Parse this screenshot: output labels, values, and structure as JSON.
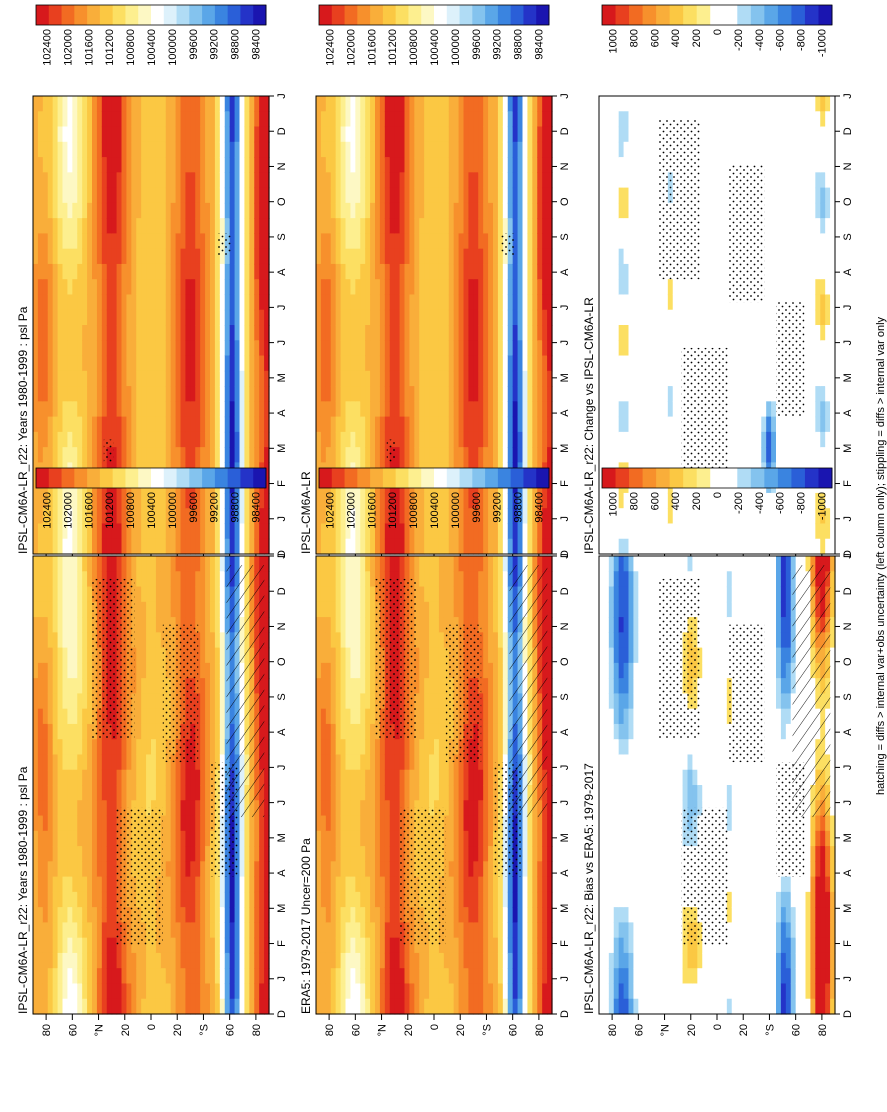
{
  "footer": "hatching = diffs > internal var+obs uncertainty (left column only); stippling = diffs > internal var only",
  "chart_data": [
    {
      "id": "model-left",
      "type": "heatmap",
      "title": "IPSL-CM6A-LR_r22: Years 1980-1999 : psl Pa",
      "variable": "psl",
      "units": "Pa",
      "x_axis": [
        "D",
        "J",
        "F",
        "M",
        "A",
        "M",
        "J",
        "J",
        "A",
        "S",
        "O",
        "N",
        "D",
        "J"
      ],
      "y_axis": [
        "80",
        "60",
        "°N",
        "20",
        "0",
        "20",
        "°S",
        "60",
        "80"
      ],
      "colorbar": [
        "102400",
        "102000",
        "101600",
        "101200",
        "100800",
        "100400",
        "100000",
        "99600",
        "99200",
        "98800",
        "98400"
      ],
      "colorbar_kind": "abs",
      "stippling": true,
      "hatching": true
    },
    {
      "id": "model-right",
      "type": "heatmap",
      "title": "IPSL-CM6A-LR_r22: Years 1980-1999 : psl Pa",
      "x_axis": [
        "D",
        "J",
        "F",
        "M",
        "A",
        "M",
        "J",
        "J",
        "A",
        "S",
        "O",
        "N",
        "D",
        "J"
      ],
      "y_axis": [
        "80",
        "60",
        "°N",
        "20",
        "0",
        "20",
        "°S",
        "60",
        "80"
      ],
      "colorbar": [
        "102400",
        "102000",
        "101600",
        "101200",
        "100800",
        "100400",
        "100000",
        "99600",
        "99200",
        "98800",
        "98400"
      ],
      "colorbar_kind": "abs",
      "stippling": true,
      "hatching": false
    },
    {
      "id": "obs-left",
      "type": "heatmap",
      "title": "ERA5: 1979-2017 Uncer=200 Pa",
      "x_axis": [
        "D",
        "J",
        "F",
        "M",
        "A",
        "M",
        "J",
        "J",
        "A",
        "S",
        "O",
        "N",
        "D",
        "J"
      ],
      "y_axis": [
        "80",
        "60",
        "°N",
        "20",
        "0",
        "20",
        "°S",
        "60",
        "80"
      ],
      "colorbar": [
        "102400",
        "102000",
        "101600",
        "101200",
        "100800",
        "100400",
        "100000",
        "99600",
        "99200",
        "98800",
        "98400"
      ],
      "colorbar_kind": "abs",
      "stippling": true,
      "hatching": true
    },
    {
      "id": "model2-right",
      "type": "heatmap",
      "title": "IPSL-CM6A-LR",
      "x_axis": [
        "D",
        "J",
        "F",
        "M",
        "A",
        "M",
        "J",
        "J",
        "A",
        "S",
        "O",
        "N",
        "D",
        "J"
      ],
      "y_axis": [
        "80",
        "60",
        "°N",
        "20",
        "0",
        "20",
        "°S",
        "60",
        "80"
      ],
      "colorbar": [
        "102400",
        "102000",
        "101600",
        "101200",
        "100800",
        "100400",
        "100000",
        "99600",
        "99200",
        "98800",
        "98400"
      ],
      "colorbar_kind": "abs",
      "stippling": true,
      "hatching": false
    },
    {
      "id": "bias-left",
      "type": "heatmap",
      "title": "IPSL-CM6A-LR_r22: Bias vs ERA5: 1979-2017",
      "x_axis": [
        "D",
        "J",
        "F",
        "M",
        "A",
        "M",
        "J",
        "J",
        "A",
        "S",
        "O",
        "N",
        "D",
        "J"
      ],
      "y_axis": [
        "80",
        "60",
        "°N",
        "20",
        "0",
        "20",
        "°S",
        "60",
        "80"
      ],
      "colorbar": [
        "1000",
        "800",
        "600",
        "400",
        "200",
        "0",
        "-200",
        "-400",
        "-600",
        "-800",
        "-1000"
      ],
      "colorbar_kind": "diff",
      "stippling": true,
      "hatching": true
    },
    {
      "id": "change-right",
      "type": "heatmap",
      "title": "IPSL-CM6A-LR_r22: Change vs IPSL-CM6A-LR",
      "x_axis": [
        "D",
        "J",
        "F",
        "M",
        "A",
        "M",
        "J",
        "J",
        "A",
        "S",
        "O",
        "N",
        "D",
        "J"
      ],
      "y_axis": [
        "80",
        "60",
        "°N",
        "20",
        "0",
        "20",
        "°S",
        "60",
        "80"
      ],
      "colorbar": [
        "1000",
        "800",
        "600",
        "400",
        "200",
        "0",
        "-200",
        "-400",
        "-600",
        "-800",
        "-1000"
      ],
      "colorbar_kind": "diff",
      "stippling": true,
      "hatching": false
    }
  ],
  "colors": {
    "abs_scale": [
      "#d7191c",
      "#e8401f",
      "#f26b22",
      "#f7902c",
      "#f9ae3a",
      "#fbc843",
      "#fcdf62",
      "#fdef8f",
      "#fdf8c4",
      "#ffffff",
      "#ddf1fb",
      "#b0dcf5",
      "#84c3ee",
      "#5aa6e8",
      "#3a84e0",
      "#2a5fd8",
      "#2433c8",
      "#1a15b0"
    ],
    "diff_scale": [
      "#d7191c",
      "#e8401f",
      "#f26b22",
      "#f7902c",
      "#f9ae3a",
      "#fbc843",
      "#fcdf62",
      "#fdef8f",
      "#ffffff",
      "#ffffff",
      "#b0dcf5",
      "#84c3ee",
      "#5aa6e8",
      "#3a84e0",
      "#2a5fd8",
      "#2433c8",
      "#1a15b0"
    ]
  }
}
